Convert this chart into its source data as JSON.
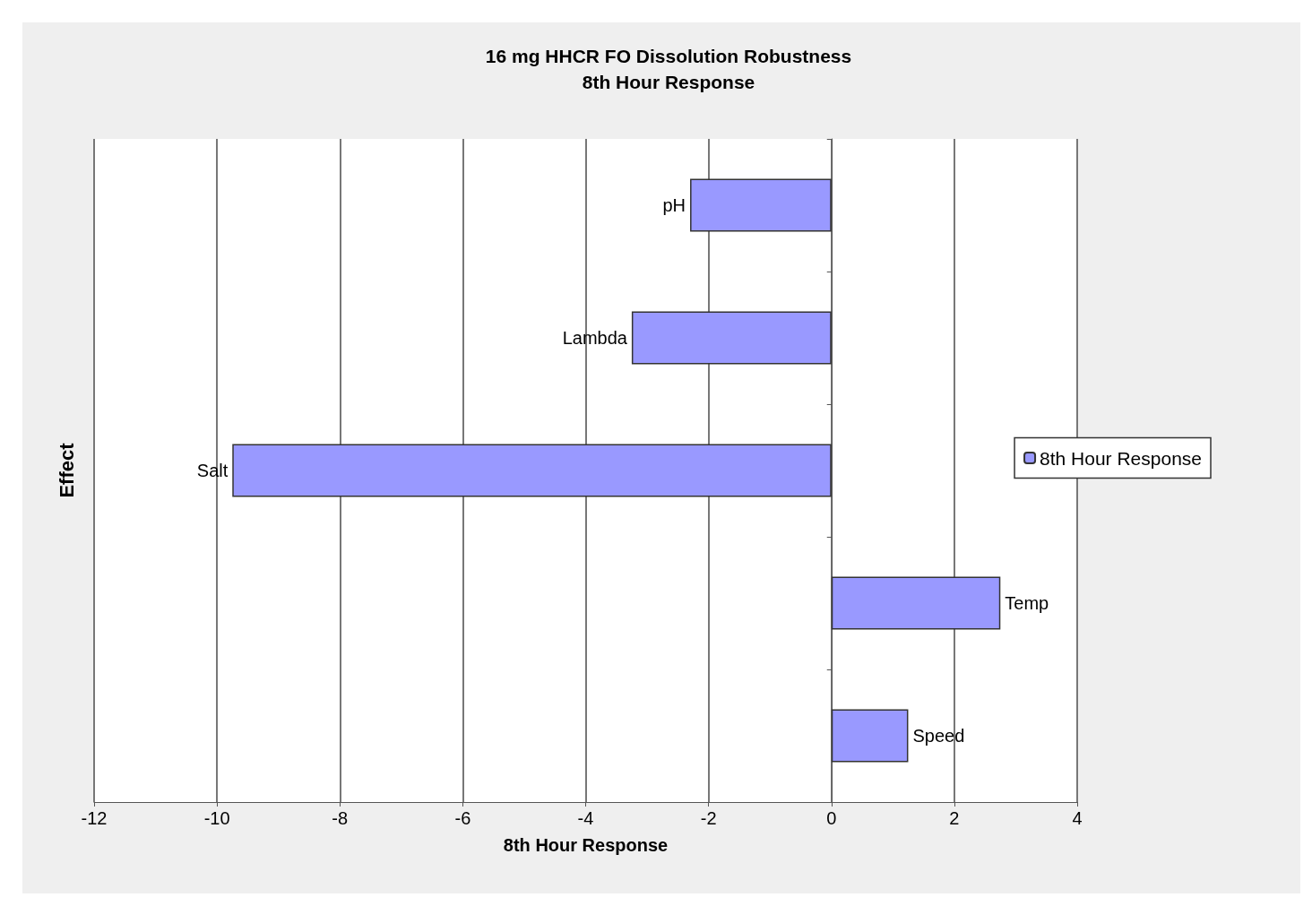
{
  "chart_data": {
    "type": "bar",
    "orientation": "horizontal",
    "title": "16 mg HHCR FO Dissolution Robustness",
    "subtitle": "8th Hour Response",
    "xlabel": "8th Hour Response",
    "ylabel": "Effect",
    "categories": [
      "pH",
      "Lambda",
      "Salt",
      "Temp",
      "Speed"
    ],
    "series": [
      {
        "name": "8th Hour Response",
        "color": "#9999ff",
        "values": [
          -2.3,
          -3.25,
          -9.75,
          2.75,
          1.25
        ]
      }
    ],
    "xlim": [
      -12,
      4
    ],
    "xticks": [
      -12,
      -10,
      -8,
      -6,
      -4,
      -2,
      0,
      2,
      4
    ],
    "grid": "x",
    "legend": "right"
  }
}
